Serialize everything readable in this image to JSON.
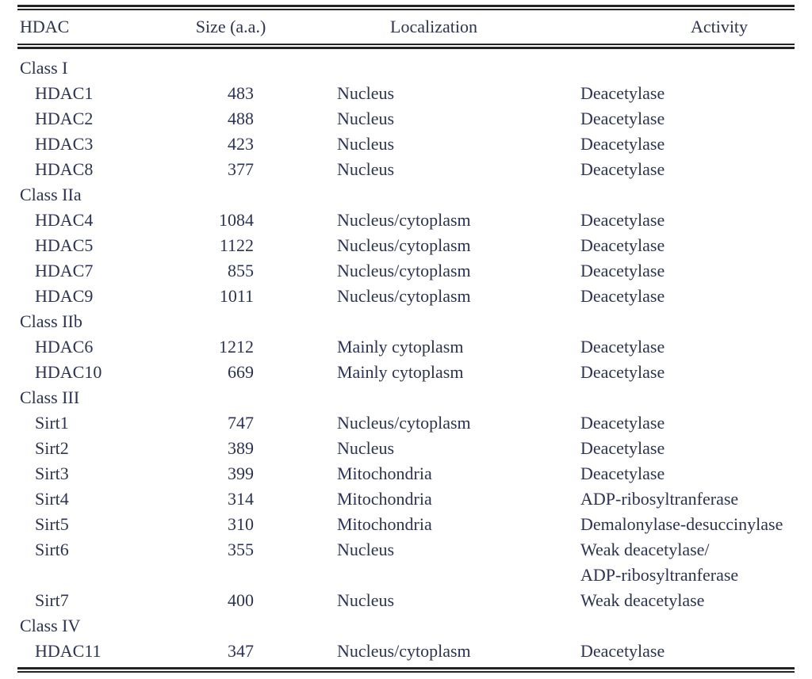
{
  "table": {
    "columns": [
      "HDAC",
      "Size (a.a.)",
      "Localization",
      "Activity"
    ],
    "groups": [
      {
        "label": "Class I",
        "rows": [
          {
            "hdac": "HDAC1",
            "size": "483",
            "localization": "Nucleus",
            "activity": "Deacetylase"
          },
          {
            "hdac": "HDAC2",
            "size": "488",
            "localization": "Nucleus",
            "activity": "Deacetylase"
          },
          {
            "hdac": "HDAC3",
            "size": "423",
            "localization": "Nucleus",
            "activity": "Deacetylase"
          },
          {
            "hdac": "HDAC8",
            "size": "377",
            "localization": "Nucleus",
            "activity": "Deacetylase"
          }
        ]
      },
      {
        "label": "Class IIa",
        "rows": [
          {
            "hdac": "HDAC4",
            "size": "1084",
            "localization": "Nucleus/cytoplasm",
            "activity": "Deacetylase"
          },
          {
            "hdac": "HDAC5",
            "size": "1122",
            "localization": "Nucleus/cytoplasm",
            "activity": "Deacetylase"
          },
          {
            "hdac": "HDAC7",
            "size": "855",
            "localization": "Nucleus/cytoplasm",
            "activity": "Deacetylase"
          },
          {
            "hdac": "HDAC9",
            "size": "1011",
            "localization": "Nucleus/cytoplasm",
            "activity": "Deacetylase"
          }
        ]
      },
      {
        "label": "Class IIb",
        "rows": [
          {
            "hdac": "HDAC6",
            "size": "1212",
            "localization": "Mainly cytoplasm",
            "activity": "Deacetylase"
          },
          {
            "hdac": "HDAC10",
            "size": "669",
            "localization": "Mainly cytoplasm",
            "activity": "Deacetylase"
          }
        ]
      },
      {
        "label": "Class III",
        "rows": [
          {
            "hdac": "Sirt1",
            "size": "747",
            "localization": "Nucleus/cytoplasm",
            "activity": "Deacetylase"
          },
          {
            "hdac": "Sirt2",
            "size": "389",
            "localization": "Nucleus",
            "activity": "Deacetylase"
          },
          {
            "hdac": "Sirt3",
            "size": "399",
            "localization": "Mitochondria",
            "activity": "Deacetylase"
          },
          {
            "hdac": "Sirt4",
            "size": "314",
            "localization": "Mitochondria",
            "activity": "ADP-ribosyltranferase"
          },
          {
            "hdac": "Sirt5",
            "size": "310",
            "localization": "Mitochondria",
            "activity": "Demalonylase-desuccinylase"
          },
          {
            "hdac": "Sirt6",
            "size": "355",
            "localization": "Nucleus",
            "activity": "Weak deacetylase/\nADP-ribosyltranferase"
          },
          {
            "hdac": "Sirt7",
            "size": "400",
            "localization": "Nucleus",
            "activity": "Weak deacetylase"
          }
        ]
      },
      {
        "label": "Class IV",
        "rows": [
          {
            "hdac": "HDAC11",
            "size": "347",
            "localization": "Nucleus/cytoplasm",
            "activity": "Deacetylase"
          }
        ]
      }
    ]
  },
  "colors": {
    "text": "#2c3350",
    "rule": "#232323",
    "background": "#ffffff"
  }
}
